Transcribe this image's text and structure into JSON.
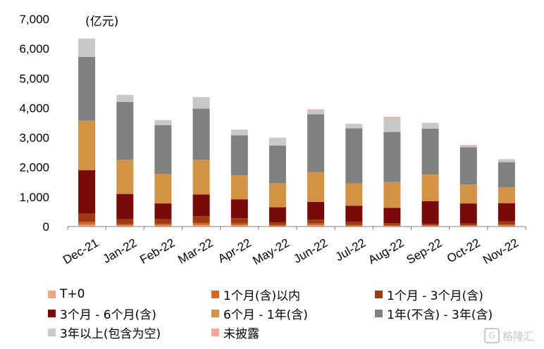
{
  "chart_data": {
    "type": "bar",
    "stacked": true,
    "unit": "(亿元)",
    "ylim": [
      0,
      7000
    ],
    "y_ticks": [
      "0",
      "1,000",
      "2,000",
      "3,000",
      "4,000",
      "5,000",
      "6,000",
      "7,000"
    ],
    "y_tick_values": [
      0,
      1000,
      2000,
      3000,
      4000,
      5000,
      6000,
      7000
    ],
    "categories": [
      "Dec-21",
      "Jan-22",
      "Feb-22",
      "Mar-22",
      "Apr-22",
      "May-22",
      "Jun-22",
      "Jul-22",
      "Aug-22",
      "Sep-22",
      "Oct-22",
      "Nov-22"
    ],
    "grid": false,
    "legend_position": "bottom",
    "series": [
      {
        "name": "T+0",
        "color": "#F4A582",
        "values": [
          60,
          30,
          30,
          50,
          40,
          20,
          40,
          20,
          20,
          20,
          20,
          30
        ]
      },
      {
        "name": "1个月(含)以内",
        "color": "#D9661F",
        "values": [
          90,
          50,
          60,
          80,
          60,
          40,
          70,
          40,
          30,
          20,
          20,
          40
        ]
      },
      {
        "name": "1个月 - 3个月(含)",
        "color": "#9C3A12",
        "values": [
          300,
          170,
          160,
          220,
          180,
          80,
          120,
          100,
          60,
          50,
          60,
          100
        ]
      },
      {
        "name": "3个月 - 6个月(含)",
        "color": "#7A0A0A",
        "values": [
          1450,
          850,
          530,
          730,
          640,
          510,
          600,
          540,
          520,
          770,
          680,
          620
        ]
      },
      {
        "name": "6个月 - 1年(含)",
        "color": "#D39245",
        "values": [
          1670,
          1150,
          1000,
          1170,
          810,
          810,
          1010,
          760,
          870,
          890,
          640,
          540
        ]
      },
      {
        "name": "1年(不含) - 3年(含)",
        "color": "#808080",
        "values": [
          2150,
          1950,
          1640,
          1730,
          1350,
          1270,
          1950,
          1850,
          1690,
          1550,
          1250,
          840
        ]
      },
      {
        "name": "3年以上(包含为空)",
        "color": "#C8C8C8",
        "values": [
          620,
          240,
          170,
          390,
          190,
          270,
          120,
          160,
          460,
          200,
          60,
          100
        ]
      },
      {
        "name": "未披露",
        "color": "#F2A89A",
        "values": [
          0,
          0,
          0,
          0,
          0,
          0,
          40,
          0,
          50,
          0,
          20,
          0
        ]
      }
    ]
  },
  "watermark": {
    "logo_text": "G",
    "text": "格隆汇"
  }
}
